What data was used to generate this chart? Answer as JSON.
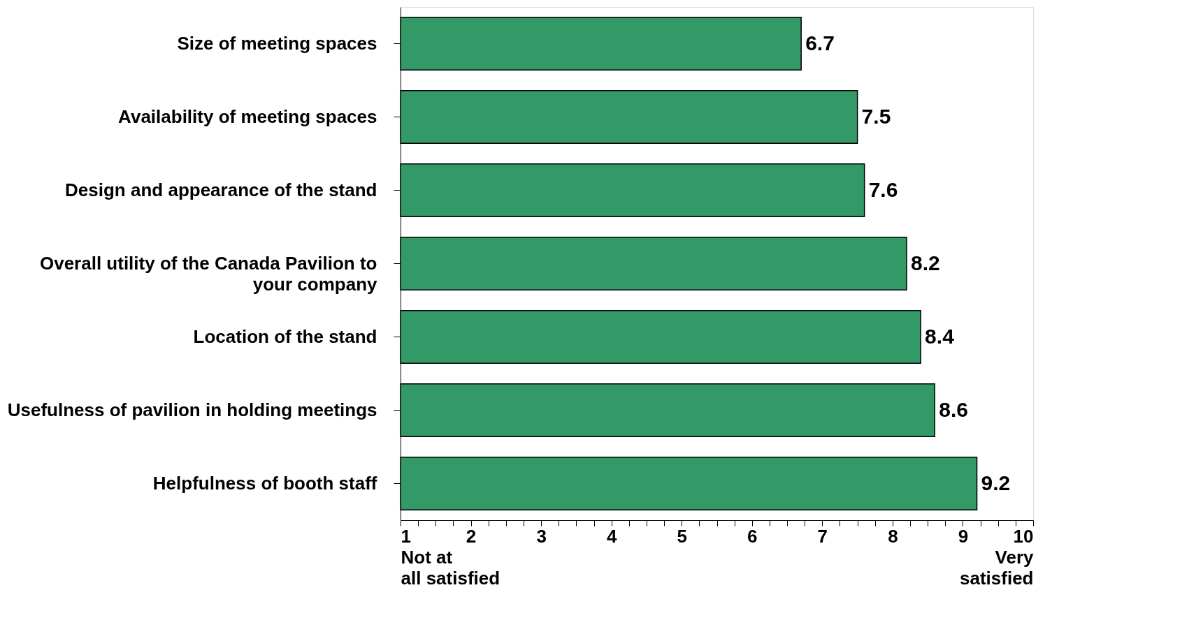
{
  "chart_data": {
    "type": "bar",
    "orientation": "horizontal",
    "data_labels": true,
    "grid": false,
    "legend": false,
    "categories": [
      "Size of meeting spaces",
      "Availability of meeting spaces",
      "Design and appearance of the stand",
      "Overall utility of the Canada Pavilion to your company",
      "Location of the stand",
      "Usefulness of pavilion in holding meetings",
      "Helpfulness of booth staff"
    ],
    "values": [
      6.7,
      7.5,
      7.6,
      8.2,
      8.4,
      8.6,
      9.2
    ],
    "color": "#339966",
    "xlim": [
      1,
      10
    ],
    "xticks": [
      {
        "value": 1,
        "label": "1\nNot at\nall satisfied"
      },
      {
        "value": 1.25,
        "label": null
      },
      {
        "value": 1.5,
        "label": null
      },
      {
        "value": 1.75,
        "label": null
      },
      2,
      {
        "value": 2.25,
        "label": null
      },
      {
        "value": 2.5,
        "label": null
      },
      {
        "value": 2.75,
        "label": null
      },
      3,
      {
        "value": 3.25,
        "label": null
      },
      {
        "value": 3.5,
        "label": null
      },
      {
        "value": 3.75,
        "label": null
      },
      4,
      {
        "value": 4.25,
        "label": null
      },
      {
        "value": 4.5,
        "label": null
      },
      {
        "value": 4.75,
        "label": null
      },
      5,
      {
        "value": 5.25,
        "label": null
      },
      {
        "value": 5.5,
        "label": null
      },
      {
        "value": 5.75,
        "label": null
      },
      6,
      {
        "value": 6.25,
        "label": null
      },
      {
        "value": 6.5,
        "label": null
      },
      {
        "value": 6.75,
        "label": null
      },
      7,
      {
        "value": 7.25,
        "label": null
      },
      {
        "value": 7.5,
        "label": null
      },
      {
        "value": 7.75,
        "label": null
      },
      8,
      {
        "value": 8.25,
        "label": null
      },
      {
        "value": 8.5,
        "label": null
      },
      {
        "value": 8.75,
        "label": null
      },
      9,
      {
        "value": 9.25,
        "label": null
      },
      {
        "value": 9.5,
        "label": null
      },
      {
        "value": 9.75,
        "label": null
      },
      {
        "value": 10,
        "label": "10\nVery\nsatisfied"
      }
    ]
  }
}
